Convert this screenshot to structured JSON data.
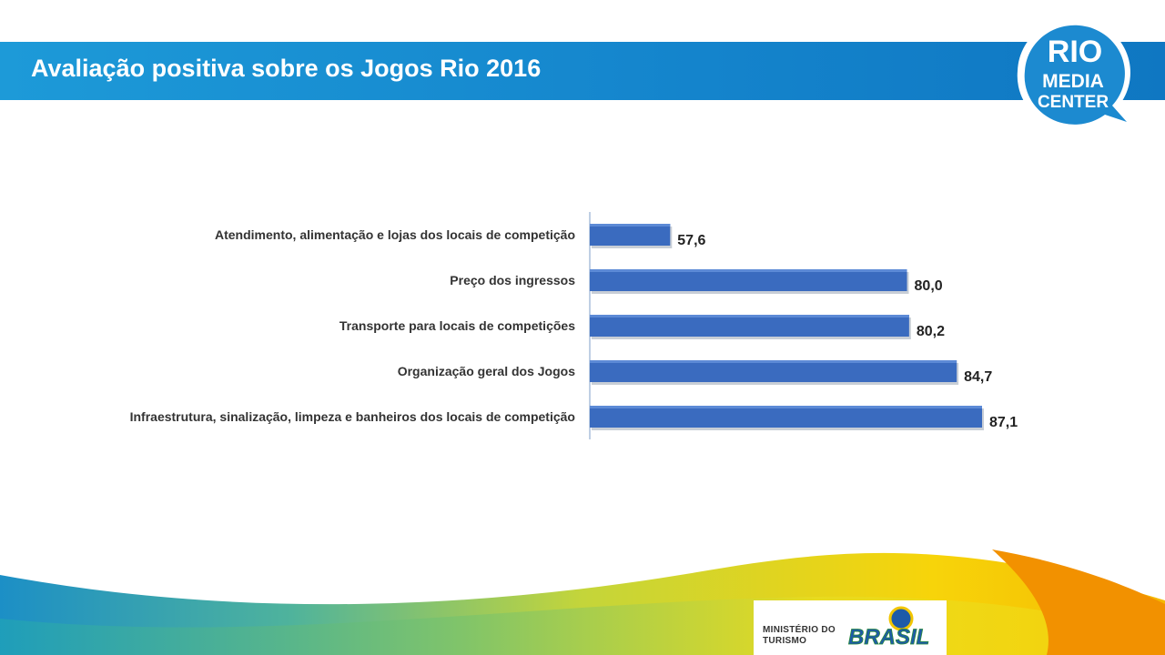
{
  "title": "Avaliação positiva sobre os Jogos Rio 2016",
  "logo": {
    "line1": "RIO",
    "line2": "MEDIA",
    "line3": "CENTER"
  },
  "footer": {
    "ministry_line1": "MINISTÉRIO DO",
    "ministry_line2": "TURISMO",
    "brand": "BRASIL"
  },
  "colors": {
    "header": "#1484cc",
    "bar": "#3a6bbf",
    "logo": "#1c8ad0",
    "wave_yellow": "#f7d40a",
    "wave_orange": "#f29100",
    "wave_teal": "#1fa0b8"
  },
  "chart_data": {
    "type": "bar",
    "orientation": "horizontal",
    "categories": [
      "Atendimento, alimentação e lojas dos locais de competição",
      "Preço dos ingressos",
      "Transporte para locais de competições",
      "Organização geral dos Jogos",
      "Infraestrutura, sinalização, limpeza e banheiros dos locais de competição"
    ],
    "values": [
      57.6,
      80.0,
      80.2,
      84.7,
      87.1
    ],
    "value_labels": [
      "57,6",
      "80,0",
      "80,2",
      "84,7",
      "87,1"
    ],
    "xlim": [
      50,
      90
    ],
    "grid": false,
    "legend": "none"
  }
}
